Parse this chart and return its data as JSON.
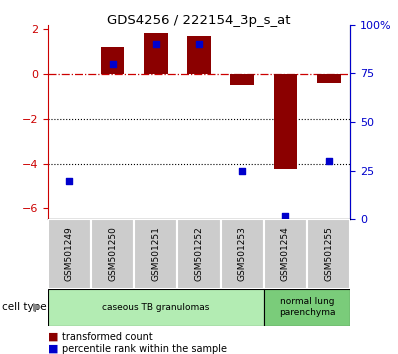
{
  "title": "GDS4256 / 222154_3p_s_at",
  "samples": [
    "GSM501249",
    "GSM501250",
    "GSM501251",
    "GSM501252",
    "GSM501253",
    "GSM501254",
    "GSM501255"
  ],
  "red_values": [
    0.0,
    1.2,
    1.82,
    1.72,
    -0.5,
    -4.25,
    -0.42
  ],
  "blue_pct": [
    20,
    80,
    90,
    90,
    25,
    2,
    30
  ],
  "ylim_left": [
    -6.5,
    2.2
  ],
  "ylim_right": [
    0,
    100
  ],
  "left_ticks": [
    2,
    0,
    -2,
    -4,
    -6
  ],
  "right_ticks": [
    100,
    75,
    50,
    25,
    0
  ],
  "right_tick_labels": [
    "100%",
    "75",
    "50",
    "25",
    "0"
  ],
  "cell_types": [
    {
      "label": "caseous TB granulomas",
      "start": 0,
      "end": 5,
      "color": "#b3ecb3"
    },
    {
      "label": "normal lung\nparenchyma",
      "start": 5,
      "end": 7,
      "color": "#7acc7a"
    }
  ],
  "bar_color": "#8B0000",
  "dot_color": "#0000CC",
  "dashed_line_color": "#CC0000",
  "dotted_lines": [
    -2,
    -4
  ],
  "right_axis_color": "#0000CC",
  "label_box_color": "#cccccc",
  "legend_items": [
    {
      "color": "#8B0000",
      "label": "transformed count"
    },
    {
      "color": "#0000CC",
      "label": "percentile rank within the sample"
    }
  ]
}
